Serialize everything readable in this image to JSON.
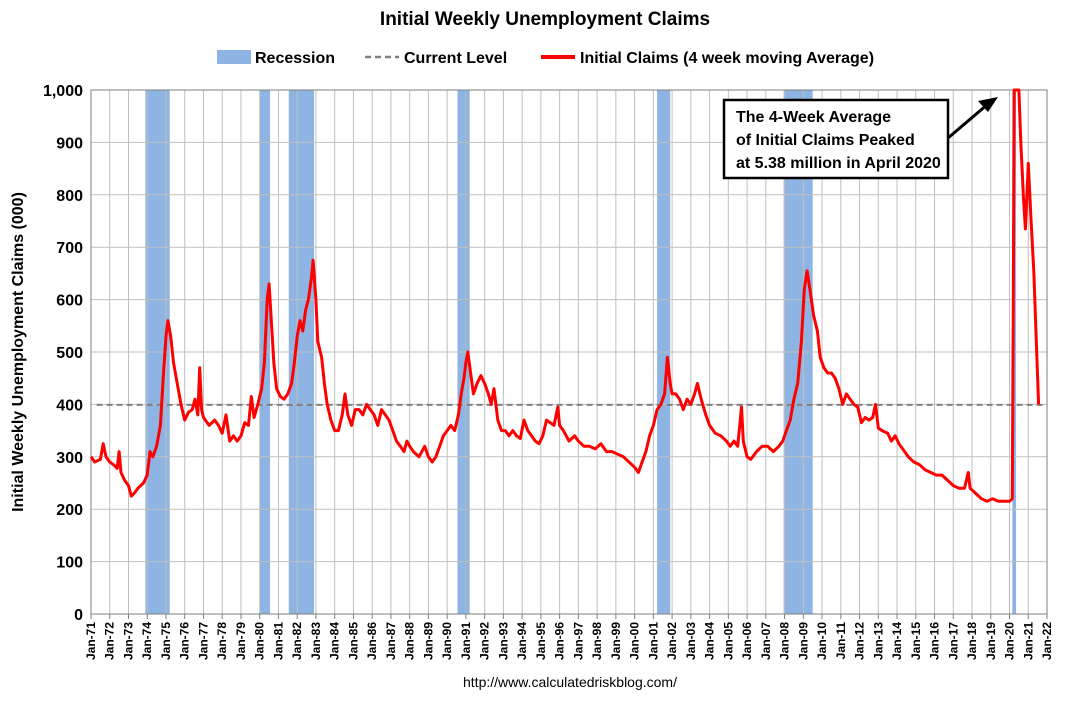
{
  "chart_data": {
    "type": "line",
    "title": "Initial Weekly Unemployment Claims",
    "ylabel": "Initial Weekly Unemployment Claims (000)",
    "xlabel": "",
    "ylim": [
      0,
      1000
    ],
    "xlim": [
      1971.0,
      2022.0
    ],
    "yticks": [
      0,
      100,
      200,
      300,
      400,
      500,
      600,
      700,
      800,
      900,
      1000
    ],
    "ytick_labels": [
      "0",
      "100",
      "200",
      "300",
      "400",
      "500",
      "600",
      "700",
      "800",
      "900",
      "1,000"
    ],
    "xticks": [
      "Jan-71",
      "Jan-72",
      "Jan-73",
      "Jan-74",
      "Jan-75",
      "Jan-76",
      "Jan-77",
      "Jan-78",
      "Jan-79",
      "Jan-80",
      "Jan-81",
      "Jan-82",
      "Jan-83",
      "Jan-84",
      "Jan-85",
      "Jan-86",
      "Jan-87",
      "Jan-88",
      "Jan-89",
      "Jan-90",
      "Jan-91",
      "Jan-92",
      "Jan-93",
      "Jan-94",
      "Jan-95",
      "Jan-96",
      "Jan-97",
      "Jan-98",
      "Jan-99",
      "Jan-00",
      "Jan-01",
      "Jan-02",
      "Jan-03",
      "Jan-04",
      "Jan-05",
      "Jan-06",
      "Jan-07",
      "Jan-08",
      "Jan-09",
      "Jan-10",
      "Jan-11",
      "Jan-12",
      "Jan-13",
      "Jan-14",
      "Jan-15",
      "Jan-16",
      "Jan-17",
      "Jan-18",
      "Jan-19",
      "Jan-20",
      "Jan-21",
      "Jan-22"
    ],
    "grid": true,
    "legend_position": "top-center",
    "legend": [
      {
        "label": "Recession",
        "kind": "band",
        "color": "#8eb4e3"
      },
      {
        "label": "Current Level",
        "kind": "dashed",
        "color": "#808080"
      },
      {
        "label": "Initial Claims (4 week moving Average)",
        "kind": "line",
        "color": "#ff0000"
      }
    ],
    "current_level": 399,
    "recessions": [
      [
        1973.9,
        1975.2
      ],
      [
        1980.0,
        1980.55
      ],
      [
        1981.55,
        1982.9
      ],
      [
        1990.55,
        1991.2
      ],
      [
        2001.2,
        2001.9
      ],
      [
        2007.95,
        2009.5
      ],
      [
        2020.15,
        2020.35
      ]
    ],
    "series": [
      {
        "name": "Initial Claims (4 week moving Average)",
        "color": "#ff0000",
        "points": [
          [
            1971.0,
            300
          ],
          [
            1971.2,
            290
          ],
          [
            1971.5,
            295
          ],
          [
            1971.65,
            325
          ],
          [
            1971.8,
            300
          ],
          [
            1972.0,
            290
          ],
          [
            1972.2,
            285
          ],
          [
            1972.4,
            278
          ],
          [
            1972.5,
            310
          ],
          [
            1972.6,
            270
          ],
          [
            1972.8,
            255
          ],
          [
            1973.0,
            245
          ],
          [
            1973.15,
            225
          ],
          [
            1973.3,
            230
          ],
          [
            1973.5,
            240
          ],
          [
            1973.8,
            250
          ],
          [
            1974.0,
            265
          ],
          [
            1974.15,
            310
          ],
          [
            1974.3,
            300
          ],
          [
            1974.5,
            320
          ],
          [
            1974.7,
            360
          ],
          [
            1974.85,
            450
          ],
          [
            1975.0,
            530
          ],
          [
            1975.1,
            560
          ],
          [
            1975.25,
            530
          ],
          [
            1975.4,
            480
          ],
          [
            1975.6,
            440
          ],
          [
            1975.8,
            400
          ],
          [
            1976.0,
            370
          ],
          [
            1976.2,
            385
          ],
          [
            1976.4,
            390
          ],
          [
            1976.55,
            410
          ],
          [
            1976.7,
            380
          ],
          [
            1976.8,
            470
          ],
          [
            1976.9,
            390
          ],
          [
            1977.0,
            375
          ],
          [
            1977.3,
            360
          ],
          [
            1977.6,
            370
          ],
          [
            1977.8,
            360
          ],
          [
            1978.0,
            345
          ],
          [
            1978.2,
            380
          ],
          [
            1978.4,
            330
          ],
          [
            1978.6,
            340
          ],
          [
            1978.8,
            330
          ],
          [
            1979.0,
            340
          ],
          [
            1979.2,
            365
          ],
          [
            1979.4,
            360
          ],
          [
            1979.55,
            415
          ],
          [
            1979.7,
            375
          ],
          [
            1979.9,
            400
          ],
          [
            1980.1,
            430
          ],
          [
            1980.25,
            480
          ],
          [
            1980.4,
            600
          ],
          [
            1980.5,
            630
          ],
          [
            1980.6,
            570
          ],
          [
            1980.75,
            480
          ],
          [
            1980.9,
            430
          ],
          [
            1981.1,
            415
          ],
          [
            1981.3,
            410
          ],
          [
            1981.5,
            420
          ],
          [
            1981.7,
            440
          ],
          [
            1981.85,
            480
          ],
          [
            1982.0,
            530
          ],
          [
            1982.15,
            560
          ],
          [
            1982.3,
            540
          ],
          [
            1982.45,
            580
          ],
          [
            1982.6,
            600
          ],
          [
            1982.75,
            640
          ],
          [
            1982.85,
            675
          ],
          [
            1983.0,
            600
          ],
          [
            1983.1,
            520
          ],
          [
            1983.3,
            490
          ],
          [
            1983.45,
            440
          ],
          [
            1983.6,
            400
          ],
          [
            1983.8,
            370
          ],
          [
            1984.0,
            350
          ],
          [
            1984.2,
            350
          ],
          [
            1984.4,
            380
          ],
          [
            1984.55,
            420
          ],
          [
            1984.7,
            380
          ],
          [
            1984.9,
            360
          ],
          [
            1985.1,
            390
          ],
          [
            1985.3,
            390
          ],
          [
            1985.5,
            380
          ],
          [
            1985.7,
            400
          ],
          [
            1985.9,
            390
          ],
          [
            1986.1,
            380
          ],
          [
            1986.3,
            360
          ],
          [
            1986.5,
            390
          ],
          [
            1986.7,
            380
          ],
          [
            1986.9,
            370
          ],
          [
            1987.1,
            350
          ],
          [
            1987.3,
            330
          ],
          [
            1987.5,
            320
          ],
          [
            1987.7,
            310
          ],
          [
            1987.85,
            330
          ],
          [
            1988.0,
            320
          ],
          [
            1988.2,
            310
          ],
          [
            1988.5,
            300
          ],
          [
            1988.8,
            320
          ],
          [
            1989.0,
            300
          ],
          [
            1989.2,
            290
          ],
          [
            1989.4,
            300
          ],
          [
            1989.6,
            320
          ],
          [
            1989.8,
            340
          ],
          [
            1990.0,
            350
          ],
          [
            1990.2,
            360
          ],
          [
            1990.4,
            350
          ],
          [
            1990.6,
            380
          ],
          [
            1990.75,
            420
          ],
          [
            1990.9,
            450
          ],
          [
            1991.0,
            480
          ],
          [
            1991.1,
            500
          ],
          [
            1991.25,
            460
          ],
          [
            1991.4,
            420
          ],
          [
            1991.6,
            440
          ],
          [
            1991.8,
            455
          ],
          [
            1992.0,
            440
          ],
          [
            1992.2,
            420
          ],
          [
            1992.35,
            400
          ],
          [
            1992.5,
            430
          ],
          [
            1992.7,
            370
          ],
          [
            1992.9,
            350
          ],
          [
            1993.1,
            350
          ],
          [
            1993.3,
            340
          ],
          [
            1993.5,
            350
          ],
          [
            1993.7,
            340
          ],
          [
            1993.9,
            335
          ],
          [
            1994.1,
            370
          ],
          [
            1994.3,
            350
          ],
          [
            1994.5,
            340
          ],
          [
            1994.7,
            330
          ],
          [
            1994.9,
            325
          ],
          [
            1995.1,
            340
          ],
          [
            1995.3,
            370
          ],
          [
            1995.5,
            365
          ],
          [
            1995.7,
            360
          ],
          [
            1995.9,
            395
          ],
          [
            1996.0,
            360
          ],
          [
            1996.2,
            350
          ],
          [
            1996.5,
            330
          ],
          [
            1996.8,
            340
          ],
          [
            1997.0,
            330
          ],
          [
            1997.3,
            320
          ],
          [
            1997.6,
            320
          ],
          [
            1997.9,
            315
          ],
          [
            1998.2,
            325
          ],
          [
            1998.5,
            310
          ],
          [
            1998.8,
            310
          ],
          [
            1999.1,
            305
          ],
          [
            1999.4,
            300
          ],
          [
            1999.7,
            290
          ],
          [
            2000.0,
            280
          ],
          [
            2000.2,
            270
          ],
          [
            2000.4,
            290
          ],
          [
            2000.6,
            310
          ],
          [
            2000.8,
            340
          ],
          [
            2001.0,
            360
          ],
          [
            2001.2,
            390
          ],
          [
            2001.4,
            400
          ],
          [
            2001.6,
            420
          ],
          [
            2001.75,
            490
          ],
          [
            2001.9,
            440
          ],
          [
            2002.0,
            420
          ],
          [
            2002.2,
            420
          ],
          [
            2002.4,
            410
          ],
          [
            2002.6,
            390
          ],
          [
            2002.8,
            410
          ],
          [
            2003.0,
            400
          ],
          [
            2003.2,
            420
          ],
          [
            2003.35,
            440
          ],
          [
            2003.55,
            410
          ],
          [
            2003.8,
            380
          ],
          [
            2004.0,
            360
          ],
          [
            2004.3,
            345
          ],
          [
            2004.6,
            340
          ],
          [
            2004.9,
            330
          ],
          [
            2005.1,
            320
          ],
          [
            2005.3,
            330
          ],
          [
            2005.5,
            320
          ],
          [
            2005.7,
            395
          ],
          [
            2005.8,
            330
          ],
          [
            2006.0,
            300
          ],
          [
            2006.2,
            295
          ],
          [
            2006.5,
            310
          ],
          [
            2006.8,
            320
          ],
          [
            2007.1,
            320
          ],
          [
            2007.4,
            310
          ],
          [
            2007.7,
            320
          ],
          [
            2007.9,
            330
          ],
          [
            2008.1,
            350
          ],
          [
            2008.3,
            370
          ],
          [
            2008.5,
            410
          ],
          [
            2008.7,
            440
          ],
          [
            2008.9,
            520
          ],
          [
            2009.05,
            620
          ],
          [
            2009.2,
            655
          ],
          [
            2009.35,
            620
          ],
          [
            2009.55,
            570
          ],
          [
            2009.75,
            540
          ],
          [
            2009.9,
            490
          ],
          [
            2010.1,
            470
          ],
          [
            2010.3,
            460
          ],
          [
            2010.5,
            460
          ],
          [
            2010.7,
            450
          ],
          [
            2010.9,
            430
          ],
          [
            2011.1,
            400
          ],
          [
            2011.3,
            420
          ],
          [
            2011.5,
            410
          ],
          [
            2011.7,
            400
          ],
          [
            2011.9,
            395
          ],
          [
            2012.1,
            365
          ],
          [
            2012.3,
            375
          ],
          [
            2012.5,
            370
          ],
          [
            2012.7,
            375
          ],
          [
            2012.85,
            400
          ],
          [
            2013.0,
            355
          ],
          [
            2013.2,
            350
          ],
          [
            2013.5,
            345
          ],
          [
            2013.7,
            330
          ],
          [
            2013.9,
            340
          ],
          [
            2014.1,
            325
          ],
          [
            2014.3,
            315
          ],
          [
            2014.6,
            300
          ],
          [
            2014.9,
            290
          ],
          [
            2015.2,
            285
          ],
          [
            2015.5,
            275
          ],
          [
            2015.8,
            270
          ],
          [
            2016.1,
            265
          ],
          [
            2016.4,
            265
          ],
          [
            2016.7,
            255
          ],
          [
            2017.0,
            245
          ],
          [
            2017.3,
            240
          ],
          [
            2017.6,
            240
          ],
          [
            2017.8,
            270
          ],
          [
            2017.9,
            240
          ],
          [
            2018.2,
            230
          ],
          [
            2018.5,
            220
          ],
          [
            2018.8,
            215
          ],
          [
            2019.1,
            220
          ],
          [
            2019.4,
            215
          ],
          [
            2019.7,
            215
          ],
          [
            2020.0,
            215
          ],
          [
            2020.15,
            220
          ],
          [
            2020.2,
            600
          ],
          [
            2020.25,
            1000
          ],
          [
            2020.5,
            1000
          ],
          [
            2020.6,
            900
          ],
          [
            2020.75,
            790
          ],
          [
            2020.85,
            735
          ],
          [
            2021.0,
            860
          ],
          [
            2021.15,
            750
          ],
          [
            2021.3,
            650
          ],
          [
            2021.45,
            500
          ],
          [
            2021.55,
            400
          ]
        ]
      }
    ],
    "annotation": {
      "lines": [
        "The 4-Week Average",
        "of Initial Claims Peaked",
        "at 5.38 million in April 2020"
      ]
    },
    "source": "http://www.calculatedriskblog.com/"
  }
}
